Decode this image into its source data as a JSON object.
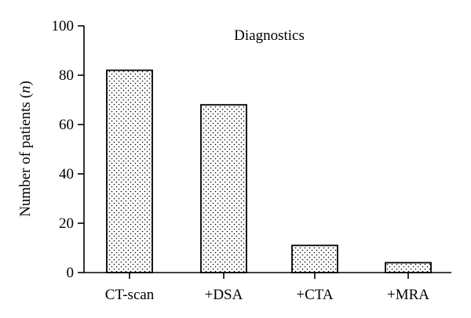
{
  "chart_data": {
    "type": "bar",
    "title": "Diagnostics",
    "ylabel_prefix": "Number of patients (",
    "ylabel_var": "n",
    "ylabel_suffix": ")",
    "xlabel": "",
    "categories": [
      "CT-scan",
      "+DSA",
      "+CTA",
      "+MRA"
    ],
    "values": [
      82,
      68,
      11,
      4
    ],
    "ylim": [
      0,
      100
    ],
    "yticks": [
      0,
      20,
      40,
      60,
      80,
      100
    ],
    "grid": false,
    "bar_fill_pattern": "dotted",
    "colors": {
      "bar_fill": "#ffffff",
      "bar_stroke": "#000000",
      "dots": "#000000"
    }
  }
}
